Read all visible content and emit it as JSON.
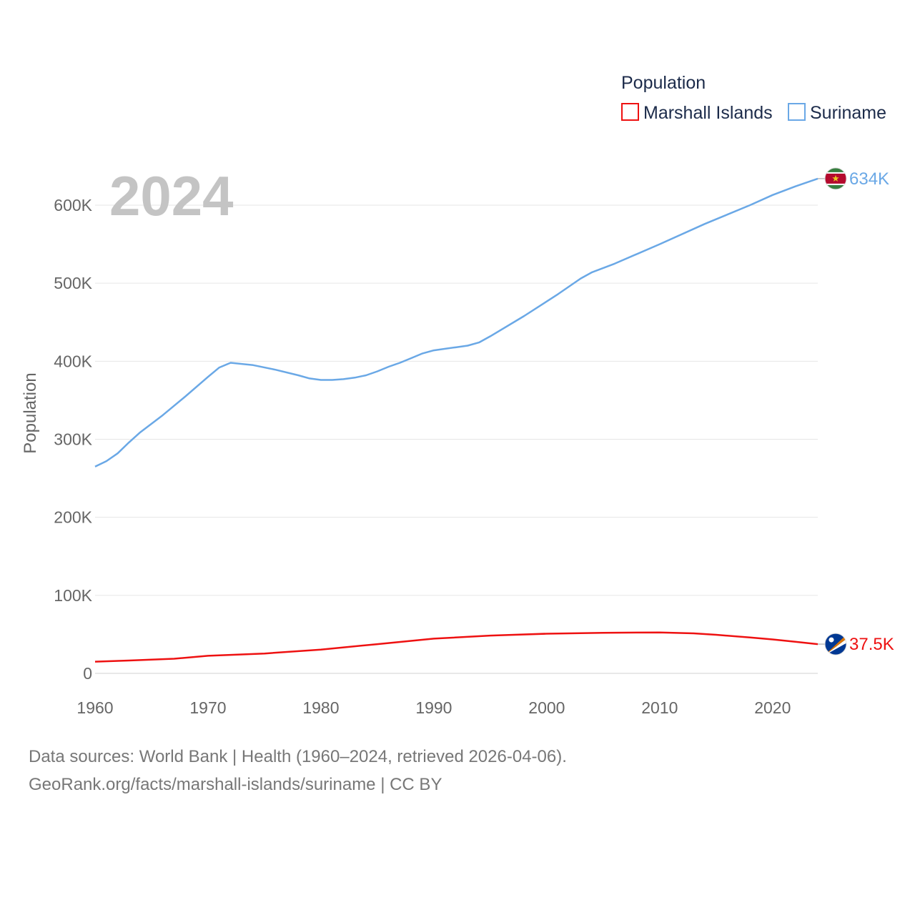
{
  "chart_data": {
    "type": "line",
    "year_label": "2024",
    "legend_title": "Population",
    "ylabel": "Population",
    "xlabel": "",
    "xlim": [
      1960,
      2024
    ],
    "ylim": [
      0,
      650000
    ],
    "x_ticks": [
      {
        "value": 1960,
        "label": "1960"
      },
      {
        "value": 1970,
        "label": "1970"
      },
      {
        "value": 1980,
        "label": "1980"
      },
      {
        "value": 1990,
        "label": "1990"
      },
      {
        "value": 2000,
        "label": "2000"
      },
      {
        "value": 2010,
        "label": "2010"
      },
      {
        "value": 2020,
        "label": "2020"
      }
    ],
    "y_ticks": [
      {
        "value": 0,
        "label": "0"
      },
      {
        "value": 100000,
        "label": "100K"
      },
      {
        "value": 200000,
        "label": "200K"
      },
      {
        "value": 300000,
        "label": "300K"
      },
      {
        "value": 400000,
        "label": "400K"
      },
      {
        "value": 500000,
        "label": "500K"
      },
      {
        "value": 600000,
        "label": "600K"
      }
    ],
    "series": [
      {
        "name": "Marshall Islands",
        "color": "#ee1111",
        "end_label": "37.5K",
        "flag_icon": "marshall-islands-flag-icon",
        "points": [
          [
            1960,
            15000
          ],
          [
            1963,
            16500
          ],
          [
            1967,
            18800
          ],
          [
            1970,
            22500
          ],
          [
            1975,
            25500
          ],
          [
            1980,
            30500
          ],
          [
            1985,
            37500
          ],
          [
            1990,
            44500
          ],
          [
            1995,
            48500
          ],
          [
            2000,
            50800
          ],
          [
            2005,
            52000
          ],
          [
            2010,
            52500
          ],
          [
            2013,
            51300
          ],
          [
            2015,
            49500
          ],
          [
            2018,
            46000
          ],
          [
            2020,
            43500
          ],
          [
            2022,
            40500
          ],
          [
            2024,
            37500
          ]
        ]
      },
      {
        "name": "Suriname",
        "color": "#6aa8e6",
        "end_label": "634K",
        "flag_icon": "suriname-flag-icon",
        "points": [
          [
            1960,
            265000
          ],
          [
            1961,
            272000
          ],
          [
            1962,
            282000
          ],
          [
            1963,
            296000
          ],
          [
            1964,
            309000
          ],
          [
            1966,
            331000
          ],
          [
            1968,
            355000
          ],
          [
            1970,
            380000
          ],
          [
            1971,
            392000
          ],
          [
            1972,
            398000
          ],
          [
            1974,
            395000
          ],
          [
            1976,
            389000
          ],
          [
            1978,
            382000
          ],
          [
            1979,
            378000
          ],
          [
            1980,
            376000
          ],
          [
            1981,
            376000
          ],
          [
            1982,
            377000
          ],
          [
            1983,
            379000
          ],
          [
            1984,
            382000
          ],
          [
            1985,
            387000
          ],
          [
            1986,
            393000
          ],
          [
            1987,
            398000
          ],
          [
            1988,
            404000
          ],
          [
            1989,
            410000
          ],
          [
            1990,
            414000
          ],
          [
            1992,
            418000
          ],
          [
            1993,
            420000
          ],
          [
            1994,
            424000
          ],
          [
            1995,
            432000
          ],
          [
            1998,
            458000
          ],
          [
            2001,
            486000
          ],
          [
            2003,
            506000
          ],
          [
            2004,
            514000
          ],
          [
            2006,
            525000
          ],
          [
            2010,
            550000
          ],
          [
            2014,
            576000
          ],
          [
            2018,
            600000
          ],
          [
            2020,
            613000
          ],
          [
            2022,
            624000
          ],
          [
            2024,
            634000
          ]
        ]
      }
    ]
  },
  "source": {
    "line1": "Data sources: World Bank | Health (1960–2024, retrieved 2026-04-06).",
    "line2": "GeoRank.org/facts/marshall-islands/suriname | CC BY"
  }
}
